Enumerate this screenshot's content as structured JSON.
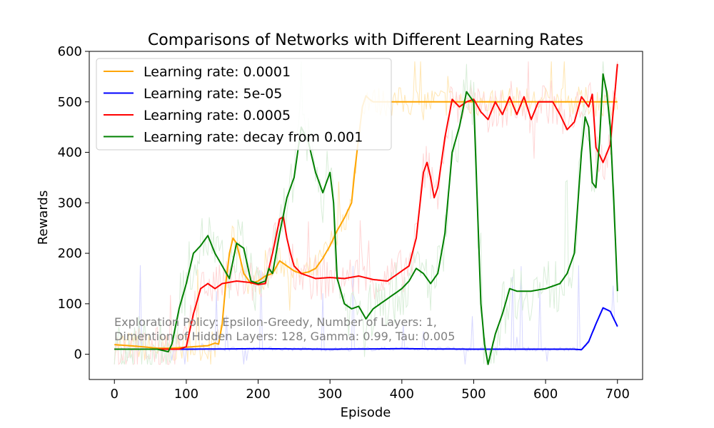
{
  "chart_data": {
    "type": "line",
    "title": "Comparisons of Networks with Different Learning Rates",
    "xlabel": "Episode",
    "ylabel": "Rewards",
    "xlim": [
      -35,
      735
    ],
    "ylim": [
      -50,
      600
    ],
    "xticks": [
      0,
      100,
      200,
      300,
      400,
      500,
      600,
      700
    ],
    "yticks": [
      0,
      100,
      200,
      300,
      400,
      500,
      600
    ],
    "legend_position": "upper-left",
    "annotation": [
      "Exploration Policy: Epsilon-Greedy, Number of Layers: 1,",
      "Dimention of Hidden Layers: 128, Gamma: 0.99, Tau: 0.005"
    ],
    "series": [
      {
        "name": "Learning rate: 0.0001",
        "color": "#ffa500",
        "points": [
          [
            0,
            19
          ],
          [
            30,
            16
          ],
          [
            60,
            12
          ],
          [
            80,
            12
          ],
          [
            100,
            14
          ],
          [
            130,
            17
          ],
          [
            140,
            22
          ],
          [
            145,
            20
          ],
          [
            150,
            60
          ],
          [
            155,
            140
          ],
          [
            160,
            200
          ],
          [
            165,
            230
          ],
          [
            170,
            220
          ],
          [
            180,
            160
          ],
          [
            190,
            140
          ],
          [
            200,
            145
          ],
          [
            210,
            155
          ],
          [
            220,
            160
          ],
          [
            230,
            185
          ],
          [
            240,
            175
          ],
          [
            250,
            165
          ],
          [
            260,
            160
          ],
          [
            270,
            163
          ],
          [
            280,
            170
          ],
          [
            290,
            190
          ],
          [
            300,
            215
          ],
          [
            310,
            245
          ],
          [
            320,
            270
          ],
          [
            330,
            300
          ],
          [
            335,
            370
          ],
          [
            340,
            430
          ],
          [
            345,
            490
          ],
          [
            350,
            512
          ],
          [
            355,
            505
          ],
          [
            360,
            500
          ],
          [
            400,
            500
          ],
          [
            500,
            500
          ],
          [
            600,
            500
          ],
          [
            700,
            500
          ]
        ]
      },
      {
        "name": "Learning rate: 5e-05",
        "color": "#0000ff",
        "points": [
          [
            0,
            10
          ],
          [
            100,
            10
          ],
          [
            200,
            11
          ],
          [
            300,
            10
          ],
          [
            400,
            11
          ],
          [
            500,
            10
          ],
          [
            600,
            10
          ],
          [
            640,
            10
          ],
          [
            650,
            9
          ],
          [
            660,
            25
          ],
          [
            670,
            60
          ],
          [
            680,
            92
          ],
          [
            690,
            85
          ],
          [
            700,
            55
          ]
        ]
      },
      {
        "name": "Learning rate: 0.0005",
        "color": "#ff0000",
        "points": [
          [
            0,
            10
          ],
          [
            60,
            10
          ],
          [
            90,
            10
          ],
          [
            100,
            15
          ],
          [
            110,
            80
          ],
          [
            120,
            130
          ],
          [
            130,
            140
          ],
          [
            140,
            130
          ],
          [
            150,
            140
          ],
          [
            170,
            145
          ],
          [
            190,
            142
          ],
          [
            200,
            138
          ],
          [
            210,
            140
          ],
          [
            220,
            200
          ],
          [
            230,
            268
          ],
          [
            235,
            272
          ],
          [
            240,
            230
          ],
          [
            245,
            200
          ],
          [
            250,
            175
          ],
          [
            260,
            160
          ],
          [
            280,
            150
          ],
          [
            300,
            152
          ],
          [
            320,
            150
          ],
          [
            340,
            155
          ],
          [
            360,
            148
          ],
          [
            380,
            145
          ],
          [
            400,
            165
          ],
          [
            410,
            175
          ],
          [
            420,
            230
          ],
          [
            430,
            360
          ],
          [
            435,
            380
          ],
          [
            440,
            350
          ],
          [
            445,
            310
          ],
          [
            450,
            330
          ],
          [
            460,
            430
          ],
          [
            470,
            505
          ],
          [
            480,
            490
          ],
          [
            490,
            500
          ],
          [
            500,
            505
          ],
          [
            510,
            480
          ],
          [
            520,
            465
          ],
          [
            530,
            500
          ],
          [
            540,
            475
          ],
          [
            550,
            510
          ],
          [
            560,
            475
          ],
          [
            570,
            510
          ],
          [
            580,
            465
          ],
          [
            590,
            500
          ],
          [
            600,
            500
          ],
          [
            610,
            500
          ],
          [
            620,
            475
          ],
          [
            630,
            445
          ],
          [
            640,
            460
          ],
          [
            650,
            510
          ],
          [
            660,
            490
          ],
          [
            665,
            515
          ],
          [
            670,
            410
          ],
          [
            680,
            380
          ],
          [
            690,
            415
          ],
          [
            700,
            575
          ]
        ]
      },
      {
        "name": "Learning rate: decay from 0.001",
        "color": "#008000",
        "points": [
          [
            0,
            10
          ],
          [
            40,
            10
          ],
          [
            60,
            10
          ],
          [
            75,
            5
          ],
          [
            80,
            20
          ],
          [
            90,
            90
          ],
          [
            100,
            140
          ],
          [
            110,
            200
          ],
          [
            120,
            215
          ],
          [
            130,
            235
          ],
          [
            140,
            200
          ],
          [
            150,
            175
          ],
          [
            160,
            150
          ],
          [
            170,
            220
          ],
          [
            180,
            210
          ],
          [
            190,
            145
          ],
          [
            200,
            140
          ],
          [
            210,
            145
          ],
          [
            215,
            170
          ],
          [
            220,
            160
          ],
          [
            230,
            240
          ],
          [
            240,
            310
          ],
          [
            250,
            350
          ],
          [
            255,
            400
          ],
          [
            260,
            450
          ],
          [
            270,
            420
          ],
          [
            280,
            360
          ],
          [
            290,
            320
          ],
          [
            300,
            360
          ],
          [
            305,
            300
          ],
          [
            310,
            150
          ],
          [
            320,
            100
          ],
          [
            330,
            90
          ],
          [
            340,
            95
          ],
          [
            350,
            70
          ],
          [
            360,
            90
          ],
          [
            380,
            110
          ],
          [
            400,
            130
          ],
          [
            410,
            145
          ],
          [
            420,
            170
          ],
          [
            430,
            160
          ],
          [
            440,
            140
          ],
          [
            450,
            160
          ],
          [
            460,
            240
          ],
          [
            470,
            400
          ],
          [
            480,
            450
          ],
          [
            490,
            520
          ],
          [
            500,
            500
          ],
          [
            505,
            300
          ],
          [
            510,
            100
          ],
          [
            515,
            20
          ],
          [
            520,
            -20
          ],
          [
            530,
            40
          ],
          [
            540,
            80
          ],
          [
            550,
            130
          ],
          [
            560,
            125
          ],
          [
            580,
            125
          ],
          [
            600,
            130
          ],
          [
            620,
            140
          ],
          [
            630,
            160
          ],
          [
            640,
            200
          ],
          [
            650,
            400
          ],
          [
            655,
            470
          ],
          [
            660,
            450
          ],
          [
            665,
            340
          ],
          [
            670,
            330
          ],
          [
            675,
            420
          ],
          [
            680,
            555
          ],
          [
            685,
            520
          ],
          [
            690,
            450
          ],
          [
            695,
            300
          ],
          [
            700,
            125
          ]
        ]
      }
    ]
  }
}
